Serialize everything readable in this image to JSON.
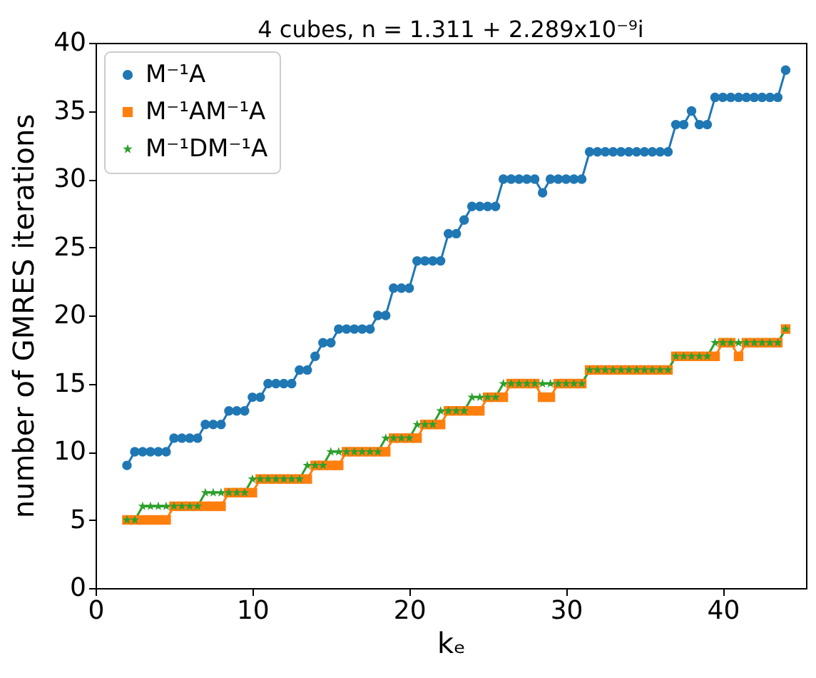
{
  "chart_data": {
    "type": "line",
    "title": "4 cubes, n = 1.311 + 2.289x10⁻⁹i",
    "xlabel": "kₑ",
    "ylabel": "number of GMRES iterations",
    "x": [
      2,
      2.5,
      3,
      3.5,
      4,
      4.5,
      5,
      5.5,
      6,
      6.5,
      7,
      7.5,
      8,
      8.5,
      9,
      9.5,
      10,
      10.5,
      11,
      11.5,
      12,
      12.5,
      13,
      13.5,
      14,
      14.5,
      15,
      15.5,
      16,
      16.5,
      17,
      17.5,
      18,
      18.5,
      19,
      19.5,
      20,
      20.5,
      21,
      21.5,
      22,
      22.5,
      23,
      23.5,
      24,
      24.5,
      25,
      25.5,
      26,
      26.5,
      27,
      27.5,
      28,
      28.5,
      29,
      29.5,
      30,
      30.5,
      31,
      31.5,
      32,
      32.5,
      33,
      33.5,
      34,
      34.5,
      35,
      35.5,
      36,
      36.5,
      37,
      37.5,
      38,
      38.5,
      39,
      39.5,
      40,
      40.5,
      41,
      41.5,
      42,
      42.5,
      43,
      43.5,
      44
    ],
    "series": [
      {
        "name": "M⁻¹A",
        "color": "#1f77b4",
        "marker": "circle",
        "values": [
          9,
          10,
          10,
          10,
          10,
          10,
          11,
          11,
          11,
          11,
          12,
          12,
          12,
          13,
          13,
          13,
          14,
          14,
          15,
          15,
          15,
          15,
          16,
          16,
          17,
          18,
          18,
          19,
          19,
          19,
          19,
          19,
          20,
          20,
          22,
          22,
          22,
          24,
          24,
          24,
          24,
          26,
          26,
          27,
          28,
          28,
          28,
          28,
          30,
          30,
          30,
          30,
          30,
          29,
          30,
          30,
          30,
          30,
          30,
          32,
          32,
          32,
          32,
          32,
          32,
          32,
          32,
          32,
          32,
          32,
          34,
          34,
          35,
          34,
          34,
          36,
          36,
          36,
          36,
          36,
          36,
          36,
          36,
          36,
          38
        ]
      },
      {
        "name": "M⁻¹AM⁻¹A",
        "color": "#ff7f0e",
        "marker": "square",
        "values": [
          5,
          5,
          5,
          5,
          5,
          5,
          6,
          6,
          6,
          6,
          6,
          6,
          6,
          7,
          7,
          7,
          7,
          8,
          8,
          8,
          8,
          8,
          8,
          8,
          9,
          9,
          9,
          9,
          10,
          10,
          10,
          10,
          10,
          10,
          11,
          11,
          11,
          11,
          12,
          12,
          12,
          13,
          13,
          13,
          13,
          13,
          14,
          14,
          14,
          15,
          15,
          15,
          15,
          14,
          14,
          15,
          15,
          15,
          15,
          16,
          16,
          16,
          16,
          16,
          16,
          16,
          16,
          16,
          16,
          16,
          17,
          17,
          17,
          17,
          17,
          17,
          18,
          18,
          17,
          18,
          18,
          18,
          18,
          18,
          19
        ]
      },
      {
        "name": "M⁻¹DM⁻¹A",
        "color": "#2ca02c",
        "marker": "star",
        "values": [
          5,
          5,
          6,
          6,
          6,
          6,
          6,
          6,
          6,
          6,
          7,
          7,
          7,
          7,
          7,
          7,
          8,
          8,
          8,
          8,
          8,
          8,
          8,
          9,
          9,
          9,
          10,
          10,
          10,
          10,
          10,
          10,
          10,
          11,
          11,
          11,
          11,
          12,
          12,
          12,
          13,
          13,
          13,
          13,
          14,
          14,
          14,
          14,
          15,
          15,
          15,
          15,
          15,
          15,
          15,
          15,
          15,
          15,
          15,
          16,
          16,
          16,
          16,
          16,
          16,
          16,
          16,
          16,
          16,
          16,
          17,
          17,
          17,
          17,
          17,
          18,
          18,
          18,
          18,
          18,
          18,
          18,
          18,
          18,
          19
        ]
      }
    ],
    "xlim": [
      0,
      45.3
    ],
    "xticks": [
      0,
      10,
      20,
      30,
      40
    ],
    "ylim": [
      0,
      40
    ],
    "yticks": [
      0,
      5,
      10,
      15,
      20,
      25,
      30,
      35,
      40
    ],
    "grid": false,
    "legend": "top left"
  }
}
